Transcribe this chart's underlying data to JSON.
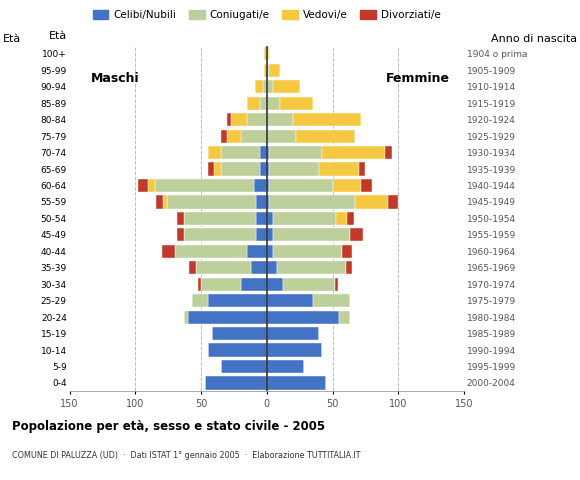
{
  "age_groups": [
    "0-4",
    "5-9",
    "10-14",
    "15-19",
    "20-24",
    "25-29",
    "30-34",
    "35-39",
    "40-44",
    "45-49",
    "50-54",
    "55-59",
    "60-64",
    "65-69",
    "70-74",
    "75-79",
    "80-84",
    "85-89",
    "90-94",
    "95-99",
    "100+"
  ],
  "birth_years": [
    "2000-2004",
    "1995-1999",
    "1990-1994",
    "1985-1989",
    "1980-1984",
    "1975-1979",
    "1970-1974",
    "1965-1969",
    "1960-1964",
    "1955-1959",
    "1950-1954",
    "1945-1949",
    "1940-1944",
    "1935-1939",
    "1930-1934",
    "1925-1929",
    "1920-1924",
    "1915-1919",
    "1910-1914",
    "1905-1909",
    "1904 o prima"
  ],
  "colors": {
    "celibe": "#4472C4",
    "coniugato": "#BDCF9A",
    "vedovo": "#F5C842",
    "divorziato": "#C0392B"
  },
  "males": {
    "celibe": [
      47,
      35,
      45,
      42,
      60,
      45,
      20,
      12,
      15,
      8,
      8,
      8,
      10,
      5,
      5,
      0,
      0,
      0,
      0,
      0,
      0
    ],
    "coniugato": [
      0,
      0,
      0,
      0,
      3,
      12,
      30,
      42,
      55,
      55,
      55,
      68,
      75,
      30,
      30,
      20,
      15,
      5,
      3,
      0,
      0
    ],
    "vedovo": [
      0,
      0,
      0,
      0,
      0,
      0,
      0,
      0,
      0,
      0,
      0,
      3,
      5,
      5,
      10,
      10,
      12,
      10,
      6,
      2,
      2
    ],
    "divorziato": [
      0,
      0,
      0,
      0,
      0,
      0,
      2,
      5,
      10,
      5,
      5,
      5,
      8,
      5,
      0,
      5,
      3,
      0,
      0,
      0,
      0
    ]
  },
  "females": {
    "celibe": [
      45,
      28,
      42,
      40,
      55,
      35,
      12,
      8,
      5,
      5,
      5,
      2,
      2,
      2,
      2,
      0,
      0,
      0,
      0,
      0,
      0
    ],
    "coniugato": [
      0,
      0,
      0,
      0,
      8,
      28,
      40,
      52,
      52,
      58,
      48,
      65,
      48,
      38,
      40,
      22,
      20,
      10,
      5,
      2,
      0
    ],
    "vedovo": [
      0,
      0,
      0,
      0,
      0,
      0,
      0,
      0,
      0,
      0,
      8,
      25,
      22,
      30,
      48,
      45,
      52,
      25,
      20,
      8,
      2
    ],
    "divorziato": [
      0,
      0,
      0,
      0,
      0,
      0,
      2,
      5,
      8,
      10,
      5,
      8,
      8,
      5,
      5,
      0,
      0,
      0,
      0,
      0,
      0
    ]
  },
  "xlim": 150,
  "title": "Popolazione per età, sesso e stato civile - 2005",
  "subtitle": "COMUNE DI PALUZZA (UD)  ·  Dati ISTAT 1° gennaio 2005  ·  Elaborazione TUTTITALIA.IT",
  "label_maschi": "Maschi",
  "label_femmine": "Femmine",
  "ylabel_left": "Età",
  "ylabel_right": "Anno di nascita",
  "legend_labels": [
    "Celibi/Nubili",
    "Coniugati/e",
    "Vedovi/e",
    "Divorziati/e"
  ],
  "background_color": "#FFFFFF",
  "grid_color": "#BBBBBB"
}
